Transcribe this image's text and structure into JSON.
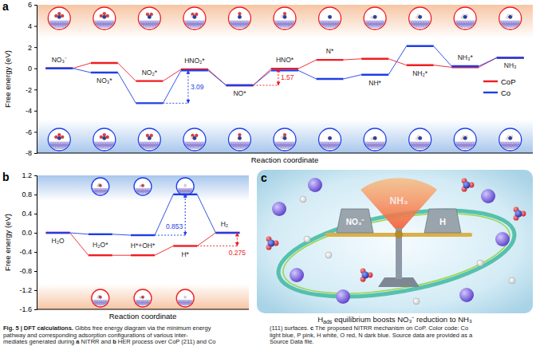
{
  "chart_data": [
    {
      "panel_label": "a",
      "type": "step",
      "x_label": "Reaction coordinate",
      "y_label": "Free energy (eV)",
      "categories": [
        "NO₃⁻",
        "NO₃*",
        "NO₂*",
        "HNO₂*",
        "NO*",
        "HNO*",
        "N*",
        "NH*",
        "NH₂*",
        "NH₃*",
        "NH₃"
      ],
      "series": [
        {
          "name": "CoP",
          "color": "#ee1d23",
          "values": [
            0,
            0.5,
            -1.2,
            -0.1,
            -1.6,
            -0.03,
            0.8,
            0.9,
            0.3,
            0.1,
            1
          ]
        },
        {
          "name": "Co",
          "color": "#1f3fe6",
          "values": [
            0,
            -0.4,
            -3.29,
            -0.2,
            -1.6,
            -0.2,
            -1.0,
            -0.6,
            2.1,
            0.2,
            1
          ]
        }
      ],
      "ylim": [
        -8,
        6
      ],
      "yticks": [
        -8,
        -6,
        -4,
        -2,
        0,
        2,
        4,
        6
      ],
      "tick_labels": "y",
      "legend": "right",
      "annotations": [
        {
          "value": 3.09,
          "series": "Co",
          "category": "HNO₂*"
        },
        {
          "value": 1.57,
          "series": "CoP",
          "category": "HNO*"
        }
      ]
    },
    {
      "panel_label": "b",
      "type": "step",
      "x_label": "Reaction coordinate",
      "y_label": "Free energy (eV)",
      "categories": [
        "H₂O",
        "H₂O*",
        "H*+OH*",
        "H*",
        "H₂"
      ],
      "series": [
        {
          "name": "CoP",
          "color": "#ee1d23",
          "values": [
            0,
            -0.47,
            -0.47,
            -0.275,
            0
          ]
        },
        {
          "name": "Co",
          "color": "#1f3fe6",
          "values": [
            0,
            -0.03,
            -0.05,
            0.803,
            0
          ]
        }
      ],
      "ylim": [
        -1.6,
        1.2
      ],
      "yticks": [
        -1.6,
        -1.2,
        -0.8,
        -0.4,
        {
          "value": 0,
          "label": "0.0"
        },
        0.4,
        0.8,
        1.2
      ],
      "tick_labels": "y",
      "annotations": [
        {
          "value": 0.853,
          "series": "Co",
          "category": "H*"
        },
        {
          "value": 0.275,
          "series": "CoP",
          "category": "H₂"
        }
      ]
    }
  ],
  "panel_c": {
    "label": "c",
    "left_weight": "NO₃⁻",
    "right_weight": "H",
    "product": "NH₃",
    "title_parts": [
      "H",
      "ads",
      " equilibrium boosts NO₃⁻ reduction to NH₃"
    ]
  },
  "caption": {
    "left": [
      [
        {
          "text": "Fig. 5 | DFT calculations.",
          "bold": true
        },
        {
          "text": " Gibbs free energy diagram via the minimum energy"
        }
      ],
      [
        {
          "text": "pathway and corresponding adsorption configurations of various inter-"
        }
      ],
      [
        {
          "text": "mediates generated during "
        },
        {
          "text": "a",
          "bold": true
        },
        {
          "text": " NITRR and "
        },
        {
          "text": "b",
          "bold": true
        },
        {
          "text": " HER process over CoP (211) and Co"
        }
      ]
    ],
    "right": [
      [
        {
          "text": "(111) surfaces. "
        },
        {
          "text": "c",
          "bold": true
        },
        {
          "text": " The proposed NITRR mechanism on CoP. Color code: Co"
        }
      ],
      [
        {
          "text": "light blue, P pink, H white, O red, N dark blue. Source data are provided as a"
        }
      ],
      [
        {
          "text": "Source Data file."
        }
      ]
    ]
  }
}
